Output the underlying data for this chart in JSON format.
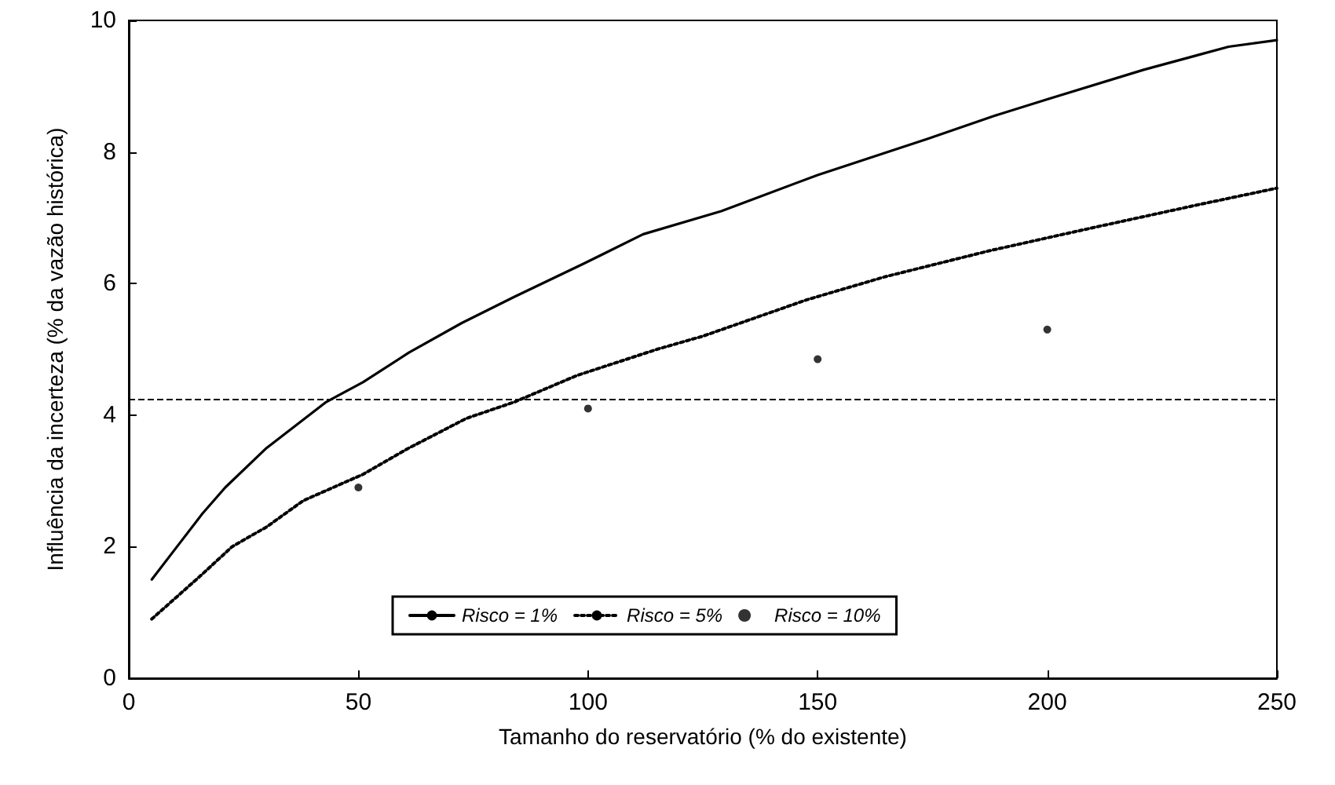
{
  "chart_data": {
    "type": "line",
    "xlabel": "Tamanho do reservatório (% do existente)",
    "ylabel": "Influência da incerteza (% da vazão histórica)",
    "series": [
      {
        "name": "Risco = 1%",
        "color": "#000000",
        "line_style": "solid",
        "x": [
          5,
          10.5,
          16,
          21,
          30,
          43,
          51,
          61,
          72.5,
          84,
          99,
          112,
          129,
          150,
          174,
          188.5,
          200,
          221,
          239.5,
          250
        ],
        "values": [
          1.5,
          2.0,
          2.5,
          2.9,
          3.5,
          4.2,
          4.5,
          4.95,
          5.4,
          5.8,
          6.3,
          6.75,
          7.1,
          7.65,
          8.2,
          8.55,
          8.8,
          9.25,
          9.6,
          9.7
        ]
      },
      {
        "name": "Risco = 5%",
        "color": "#000000",
        "line_style": "dotted",
        "x": [
          5,
          15.5,
          22.5,
          30,
          38,
          51,
          61,
          73.5,
          84,
          97.5,
          115,
          125,
          147.5,
          164.5,
          187.5,
          210,
          233,
          250
        ],
        "values": [
          0.9,
          1.55,
          2.0,
          2.3,
          2.7,
          3.1,
          3.5,
          3.95,
          4.2,
          4.6,
          5.0,
          5.2,
          5.75,
          6.1,
          6.5,
          6.85,
          7.2,
          7.45
        ]
      },
      {
        "name": "Risco = 10%",
        "color": "#000000",
        "type": "scatter",
        "marker": "circle",
        "x": [
          50,
          100,
          150,
          200
        ],
        "values": [
          2.9,
          4.1,
          4.85,
          5.3
        ]
      }
    ],
    "xlim": [
      0,
      250
    ],
    "xticks": [
      0,
      50,
      100,
      150,
      200,
      250
    ],
    "ylim": [
      0,
      10
    ],
    "yticks": [
      0,
      2,
      4,
      6,
      8,
      10
    ],
    "ref_lines": [
      {
        "axis": "y",
        "value": 4.25,
        "label": null,
        "color": "#000000",
        "line_style": "dashed"
      }
    ],
    "grid": false,
    "legend": "bottom"
  }
}
